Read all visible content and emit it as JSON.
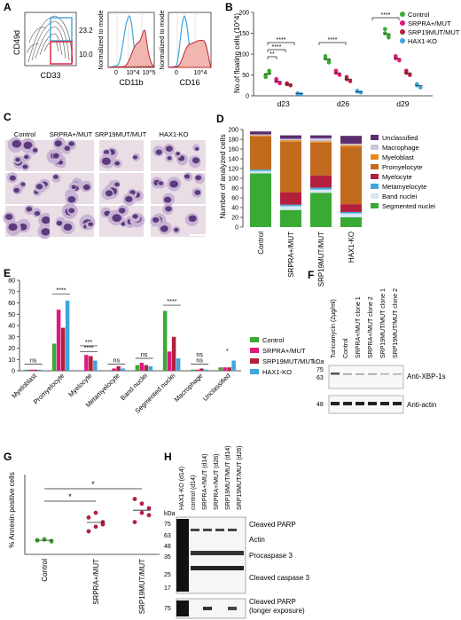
{
  "panels": {
    "A": {
      "letter": "A",
      "flow": {
        "ylabel": "CD49d",
        "xlabel": "CD33",
        "gate_high": "23.2",
        "gate_low": "10.0"
      },
      "hist1": {
        "ylabel": "Normalized to mode",
        "xlabel": "CD11b",
        "ticks": [
          "0",
          "10^4",
          "10^5"
        ]
      },
      "hist2": {
        "ylabel": "Normalized to mode",
        "xlabel": "CD16",
        "ticks": [
          "0",
          "10^4"
        ]
      }
    },
    "B": {
      "letter": "B",
      "ylabel": "No.of floating cells (10^4)",
      "yticks": [
        "0",
        "50",
        "100",
        "150",
        "200"
      ],
      "sig": [
        "**",
        "****",
        "****",
        "****",
        "****"
      ],
      "legend": [
        "Control",
        "SRPRA+/MUT",
        "SRP19MUT/MUT",
        "HAX1-KO"
      ]
    },
    "C": {
      "letter": "C",
      "columns": [
        "Control",
        "SRPRA+/MUT",
        "SRP19MUT/MUT",
        "HAX1-KO"
      ]
    },
    "D": {
      "letter": "D",
      "ylabel": "Number of analyzed cells",
      "legend": [
        "Unclassified",
        "Macrophage",
        "Myeloblast",
        "Promyelocyte",
        "Myelocyte",
        "Metamyelocyte",
        "Band nuclei",
        "Segmented nuclei"
      ]
    },
    "E": {
      "letter": "E",
      "legend": [
        "Control",
        "SRPRA+/MUT",
        "SRP19MUT/MUT",
        "HAX1-KO"
      ],
      "sig": {
        "s1": "ns",
        "s2": "****",
        "s3": "***",
        "s4": "****",
        "s5": "ns",
        "s6": "ns",
        "s7": "****",
        "s8": "ns",
        "s9": "ns",
        "s10": "*"
      }
    },
    "F": {
      "letter": "F",
      "lanes": [
        "Tunicamycin (2µg/ml)",
        "Control",
        "SRPRA+/MUT clone 1",
        "SRPRA+/MUT clone 2",
        "SRP19MUT/MUT clone 1",
        "SRP19MUT/MUT clone 2"
      ],
      "kda": "kDa",
      "markers": [
        "75",
        "63",
        "48"
      ],
      "blots": [
        "Anti-XBP-1s",
        "Anti-actin"
      ]
    },
    "G": {
      "letter": "G",
      "ylabel": "% Annexin positive cells",
      "sig": [
        "*",
        "*"
      ]
    },
    "H": {
      "letter": "H",
      "kda": "kDa",
      "lanes": [
        "HAX1-KO (d14)",
        "control (d14)",
        "SRPRA+/MUT (d14)",
        "SRPRA+/MUT (d26)",
        "SRP19MUT/MUT (d14)",
        "SRP19MUT/MUT (d26)"
      ],
      "markers": [
        "75",
        "63",
        "48",
        "35",
        "25",
        "17"
      ],
      "markers2": [
        "75"
      ],
      "blots": [
        "Cleaved PARP",
        "Actin",
        "Procaspase 3",
        "Cleaved caspase 3",
        "Cleaved PARP",
        "(longer exposure)"
      ]
    }
  },
  "colors": {
    "control": "#3aaa35",
    "srpra": "#e0197d",
    "srp19": "#b31f3c",
    "hax1": "#3ea6db",
    "unclassified": "#5c2d6e",
    "macrophage": "#c8c8de",
    "myeloblast": "#e8891e",
    "promyelocyte": "#c26a1e",
    "myelocyte": "#b31f3c",
    "metamyelocyte": "#3ea6db",
    "band": "#d6e6f2",
    "segmented": "#3aaa35"
  },
  "chart_data": [
    {
      "type": "scatter",
      "id": "B",
      "ylabel": "No.of floating cells (10^4)",
      "ylim": [
        0,
        200
      ],
      "categories": [
        "d23",
        "d26",
        "d29"
      ],
      "series": [
        {
          "name": "Control",
          "values": [
            [
              50,
              60,
              45,
              55
            ],
            [
              90,
              80,
              95,
              85
            ],
            [
              150,
              140,
              160,
              145
            ]
          ]
        },
        {
          "name": "SRPRA+/MUT",
          "values": [
            [
              35,
              30,
              40
            ],
            [
              55,
              50,
              60
            ],
            [
              90,
              85,
              95
            ]
          ]
        },
        {
          "name": "SRP19MUT/MUT",
          "values": [
            [
              28,
              25,
              30
            ],
            [
              40,
              35,
              45
            ],
            [
              55,
              50,
              60
            ]
          ]
        },
        {
          "name": "HAX1-KO",
          "values": [
            [
              5,
              4,
              6
            ],
            [
              10,
              8,
              12
            ],
            [
              25,
              20,
              28
            ]
          ]
        }
      ]
    },
    {
      "type": "bar",
      "id": "D",
      "stacked": true,
      "ylabel": "Number of analyzed cells",
      "ylim": [
        0,
        200
      ],
      "yticks": [
        0,
        20,
        40,
        60,
        80,
        100,
        120,
        140,
        160,
        180,
        200
      ],
      "categories": [
        "Control",
        "SRPRA+/MUT",
        "SRP19MUT/MUT",
        "HAX1-KO"
      ],
      "series": [
        {
          "name": "Segmented nuclei",
          "values": [
            110,
            35,
            70,
            20
          ]
        },
        {
          "name": "Band nuclei",
          "values": [
            5,
            8,
            7,
            8
          ]
        },
        {
          "name": "Metamyelocyte",
          "values": [
            3,
            3,
            4,
            3
          ]
        },
        {
          "name": "Myelocyte",
          "values": [
            0,
            25,
            25,
            16
          ]
        },
        {
          "name": "Promyelocyte",
          "values": [
            68,
            104,
            67,
            118
          ]
        },
        {
          "name": "Myeloblast",
          "values": [
            2,
            3,
            3,
            3
          ]
        },
        {
          "name": "Macrophage",
          "values": [
            2,
            3,
            6,
            3
          ]
        },
        {
          "name": "Unclassified",
          "values": [
            6,
            7,
            6,
            16
          ]
        }
      ]
    },
    {
      "type": "bar",
      "id": "E",
      "ylim": [
        0,
        80
      ],
      "yticks": [
        0,
        10,
        20,
        30,
        40,
        50,
        60,
        70,
        80
      ],
      "categories": [
        "Myeloblast",
        "Promyelocyte",
        "Myelocyte",
        "Metamyelocyte",
        "Band nuclei",
        "Segmented nuclei",
        "Macrophage",
        "Unclassified"
      ],
      "series": [
        {
          "name": "Control",
          "values": [
            1,
            24,
            0,
            0,
            5,
            53,
            1,
            3
          ]
        },
        {
          "name": "SRPRA+/MUT",
          "values": [
            1,
            54,
            14,
            2,
            7,
            17,
            1,
            3
          ]
        },
        {
          "name": "SRP19MUT/MUT",
          "values": [
            1,
            38,
            13,
            4,
            5,
            30,
            2,
            3
          ]
        },
        {
          "name": "HAX1-KO",
          "values": [
            1,
            62,
            9,
            2,
            4,
            11,
            1,
            9
          ]
        }
      ]
    },
    {
      "type": "scatter",
      "id": "G",
      "ylabel": "% Annexin positive cells",
      "categories": [
        "Control",
        "SRPRA+/MUT",
        "SRP19MUT/MUT"
      ],
      "series": [
        {
          "name": "Control",
          "values": [
            3,
            3.2,
            2.8,
            3.1,
            3.3,
            2.9
          ]
        },
        {
          "name": "SRPRA+/MUT",
          "values": [
            5,
            6,
            7,
            8,
            9,
            6.5
          ]
        },
        {
          "name": "SRP19MUT/MUT",
          "values": [
            7,
            9,
            10,
            12,
            11,
            8.5
          ]
        }
      ]
    }
  ]
}
